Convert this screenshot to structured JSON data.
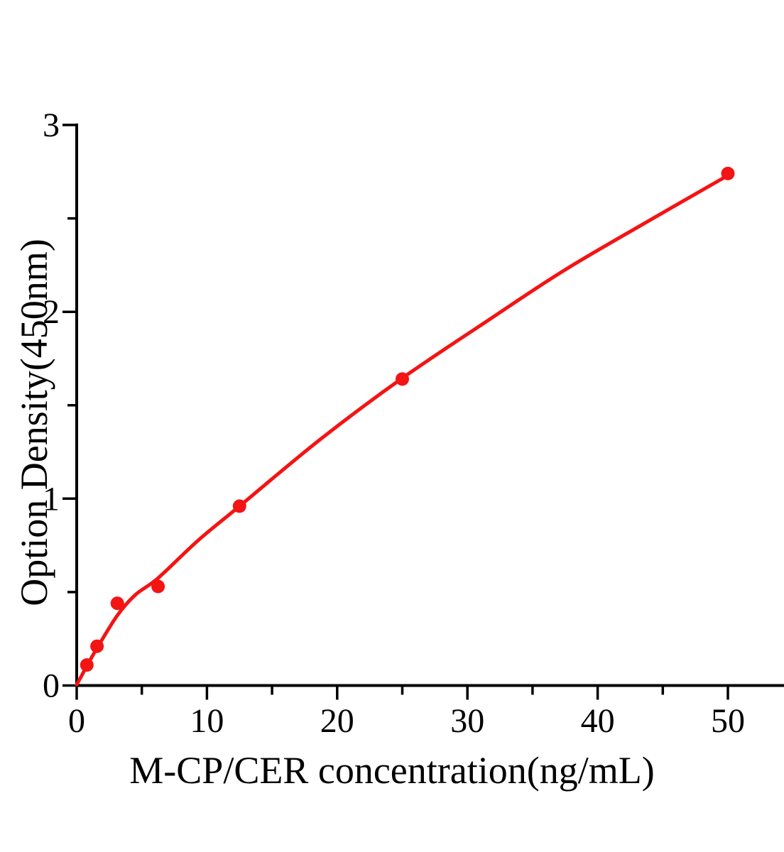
{
  "figure": {
    "background_color": "#ffffff",
    "text_color": "#000000"
  },
  "chart_data": {
    "type": "scatter",
    "title": "",
    "xlabel": "M-CP/CER concentration(ng/mL)",
    "ylabel": "Option Density(450nm)",
    "xlim": [
      0,
      54.3
    ],
    "ylim": [
      0,
      3
    ],
    "x_ticks_major": [
      0,
      10,
      20,
      30,
      40,
      50
    ],
    "x_ticks_minor": [
      5,
      15,
      25,
      35,
      45
    ],
    "y_ticks_major": [
      0,
      1,
      2,
      3
    ],
    "y_ticks_minor": [
      0.5,
      1.5,
      2.5
    ],
    "grid": false,
    "legend": "none",
    "axis_color": "#000000",
    "accent_color": "#f31414",
    "series": [
      {
        "name": "standards",
        "type": "scatter",
        "marker": "circle",
        "color": "#f31414",
        "points": [
          [
            0.78,
            0.11
          ],
          [
            1.56,
            0.21
          ],
          [
            3.12,
            0.44
          ],
          [
            6.25,
            0.53
          ],
          [
            12.5,
            0.96
          ],
          [
            25,
            1.64
          ],
          [
            50,
            2.74
          ]
        ]
      },
      {
        "name": "fitted-curve",
        "type": "line",
        "color": "#f31414",
        "points": [
          [
            0,
            0.005
          ],
          [
            0.4,
            0.055
          ],
          [
            0.78,
            0.105
          ],
          [
            1.56,
            0.2
          ],
          [
            3.12,
            0.375
          ],
          [
            4.5,
            0.485
          ],
          [
            6.25,
            0.575
          ],
          [
            9.3,
            0.775
          ],
          [
            12.5,
            0.96
          ],
          [
            18.75,
            1.32
          ],
          [
            25,
            1.645
          ],
          [
            31.5,
            1.95
          ],
          [
            37.5,
            2.225
          ],
          [
            44,
            2.49
          ],
          [
            50,
            2.73
          ]
        ]
      }
    ]
  }
}
